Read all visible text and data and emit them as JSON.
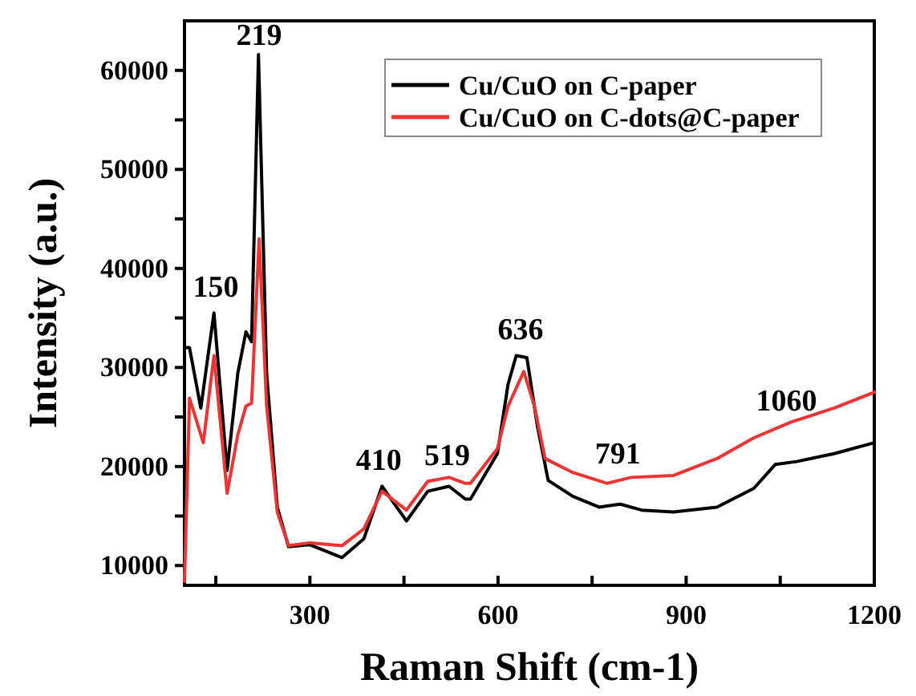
{
  "chart_data": {
    "type": "line",
    "xlabel": "Raman Shift (cm-1)",
    "ylabel": "Intensity (a.u.)",
    "xlim": [
      100,
      1200
    ],
    "xticks": [
      {
        "value": 150,
        "label": null
      },
      300,
      {
        "value": 450,
        "label": null
      },
      600,
      {
        "value": 750,
        "label": null
      },
      900,
      {
        "value": 1050,
        "label": null
      },
      1200
    ],
    "ylim": [
      8000,
      65000
    ],
    "yticks": [
      10000,
      {
        "value": 15000,
        "label": null
      },
      20000,
      {
        "value": 25000,
        "label": null
      },
      30000,
      {
        "value": 35000,
        "label": null
      },
      40000,
      {
        "value": 45000,
        "label": null
      },
      50000,
      {
        "value": 55000,
        "label": null
      },
      60000
    ],
    "legend": "top right",
    "grid": false,
    "marker": "none",
    "line_style": "solid",
    "series": [
      {
        "name": "Cu/CuO on C-paper",
        "color": "#000000",
        "x": [
          100,
          108,
          126,
          147,
          168,
          185,
          198,
          207,
          218,
          231,
          248,
          266,
          300,
          351,
          386,
          415,
          454,
          488,
          522,
          548,
          556,
          599,
          616,
          629,
          646,
          663,
          680,
          719,
          761,
          795,
          829,
          880,
          949,
          1008,
          1042,
          1076,
          1136,
          1200
        ],
        "values": [
          32000,
          32000,
          25900,
          35500,
          19600,
          29400,
          33600,
          32600,
          61600,
          29400,
          15900,
          11900,
          12100,
          10800,
          12700,
          18000,
          14500,
          17500,
          18000,
          16700,
          16700,
          21300,
          28300,
          31200,
          31000,
          24000,
          18600,
          17000,
          15900,
          16200,
          15600,
          15400,
          15900,
          17800,
          20200,
          20500,
          21300,
          22400
        ]
      },
      {
        "name": "Cu/CuO on C-dots@C-paper",
        "color": "#ee3333",
        "x": [
          100,
          108,
          130,
          147,
          168,
          185,
          198,
          207,
          219,
          231,
          248,
          266,
          300,
          351,
          386,
          415,
          454,
          488,
          522,
          548,
          556,
          599,
          616,
          641,
          658,
          675,
          719,
          774,
          812,
          880,
          949,
          1008,
          1068,
          1136,
          1200
        ],
        "values": [
          8400,
          26900,
          22400,
          31200,
          17300,
          23200,
          26100,
          26400,
          43000,
          26100,
          15400,
          12000,
          12300,
          12000,
          13700,
          17500,
          15600,
          18500,
          18900,
          18300,
          18300,
          21800,
          26100,
          29600,
          26100,
          20800,
          19400,
          18300,
          18900,
          19100,
          20800,
          22900,
          24500,
          25900,
          27500
        ]
      }
    ],
    "annotations": [
      {
        "text": "150",
        "x": 150,
        "y": 35500
      },
      {
        "text": "219",
        "x": 219,
        "y": 61600
      },
      {
        "text": "410",
        "x": 410,
        "y": 18000
      },
      {
        "text": "519",
        "x": 519,
        "y": 18500
      },
      {
        "text": "636",
        "x": 636,
        "y": 31200
      },
      {
        "text": "791",
        "x": 791,
        "y": 18700
      },
      {
        "text": "1060",
        "x": 1060,
        "y": 24000
      }
    ]
  }
}
